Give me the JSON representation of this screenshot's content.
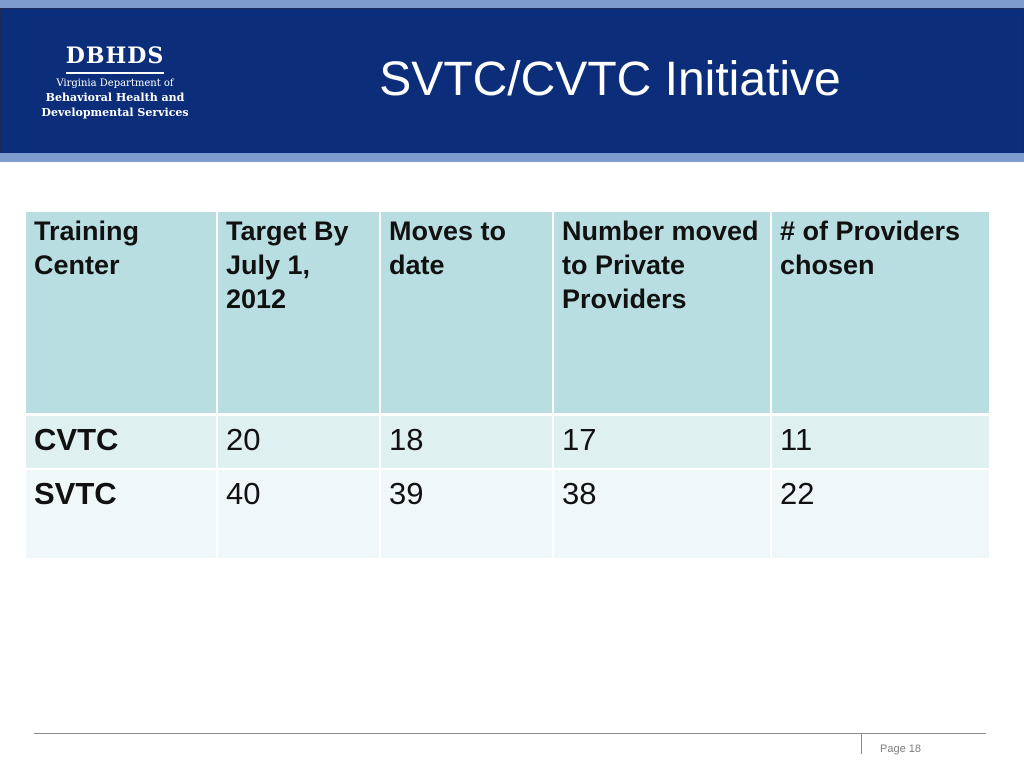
{
  "header": {
    "logo": {
      "title": "DBHDS",
      "line1": "Virginia  Department  of",
      "line2": "Behavioral Health  and",
      "line3": "Developmental Services"
    },
    "title": "SVTC/CVTC Initiative"
  },
  "table": {
    "columns": [
      "Training Center",
      "Target By July 1, 2012",
      "Moves to date",
      "Number moved to Private Providers",
      "# of Providers chosen"
    ],
    "rows": [
      {
        "center": "CVTC",
        "target": "20",
        "moves": "18",
        "private": "17",
        "providers": "11"
      },
      {
        "center": "SVTC",
        "target": "40",
        "moves": "39",
        "private": "38",
        "providers": "22"
      }
    ]
  },
  "footer": {
    "page": "Page 18"
  },
  "colors": {
    "header_bg": "#0c2e7a",
    "header_band": "#7f9ccf",
    "table_header_bg": "#b8dee2",
    "row1_bg": "#dff0f1",
    "row2_bg": "#eff7f8"
  }
}
